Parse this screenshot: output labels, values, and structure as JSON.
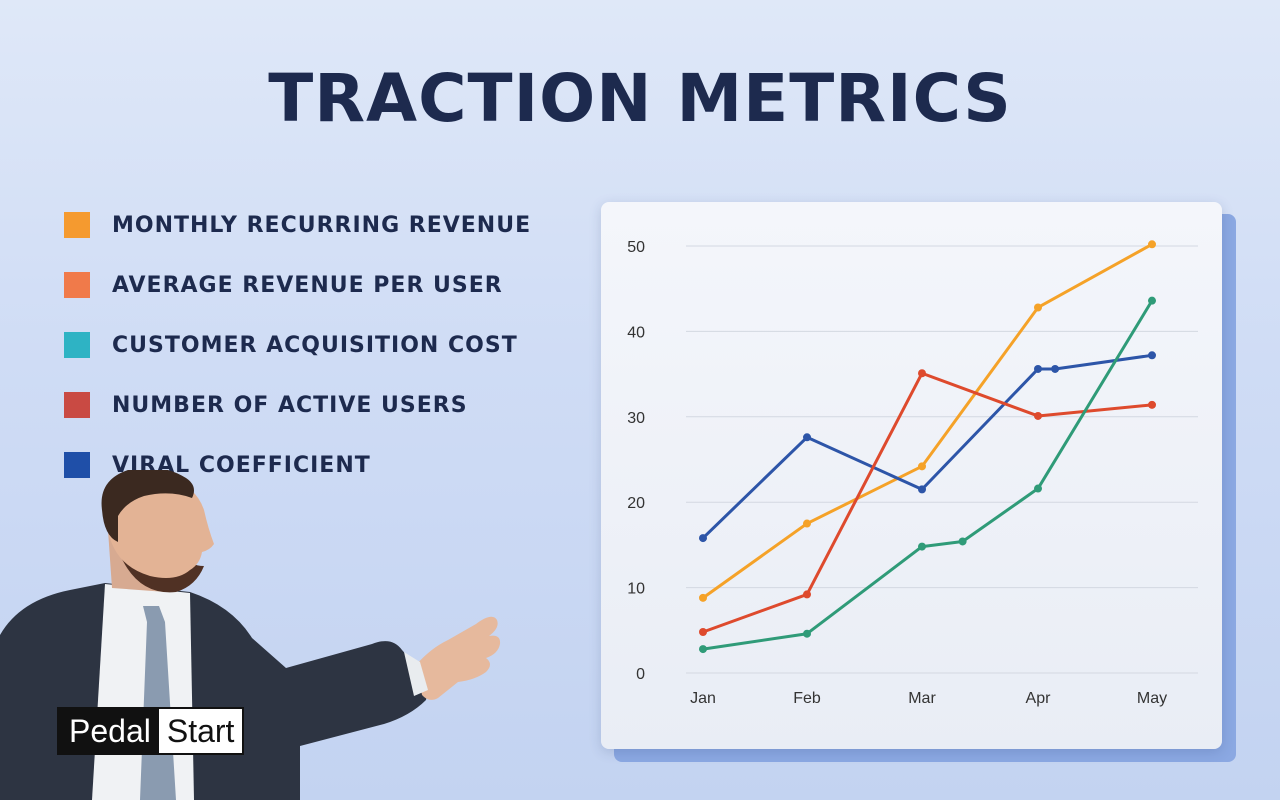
{
  "page": {
    "title": "TRACTION METRICS",
    "brand": {
      "part1": "Pedal",
      "part2": "Start"
    }
  },
  "legend": [
    {
      "label": "MONTHLY RECURRING REVENUE",
      "color": "#f59a2f"
    },
    {
      "label": "AVERAGE REVENUE PER USER",
      "color": "#f07a4a"
    },
    {
      "label": "CUSTOMER ACQUISITION COST",
      "color": "#2eb3c4"
    },
    {
      "label": "NUMBER OF ACTIVE USERS",
      "color": "#c94a43"
    },
    {
      "label": "VIRAL COEFFICIENT",
      "color": "#1f4fa8"
    }
  ],
  "chart_data": {
    "type": "line",
    "categories": [
      "Jan",
      "Feb",
      "Mar",
      "Apr",
      "May"
    ],
    "ylim": [
      0,
      50
    ],
    "yticks": [
      0,
      10,
      20,
      30,
      40,
      50
    ],
    "grid": true,
    "series": [
      {
        "name": "Orange",
        "color": "#f5a228",
        "points": [
          [
            0,
            8.8
          ],
          [
            1,
            17.5
          ],
          [
            2,
            24.2
          ],
          [
            3,
            42.8
          ],
          [
            4,
            50.2
          ]
        ]
      },
      {
        "name": "Blue",
        "color": "#2d55a8",
        "points": [
          [
            0,
            15.8
          ],
          [
            1,
            27.6
          ],
          [
            2,
            21.5
          ],
          [
            3,
            35.6
          ],
          [
            3.15,
            35.6
          ],
          [
            4,
            37.2
          ]
        ]
      },
      {
        "name": "Red",
        "color": "#de4a2d",
        "points": [
          [
            0,
            4.8
          ],
          [
            1,
            9.2
          ],
          [
            2,
            35.1
          ],
          [
            3,
            30.1
          ],
          [
            4,
            31.4
          ]
        ]
      },
      {
        "name": "Green",
        "color": "#2f9b78",
        "points": [
          [
            0,
            2.8
          ],
          [
            1,
            4.6
          ],
          [
            2,
            14.8
          ],
          [
            2.35,
            15.4
          ],
          [
            3,
            21.6
          ],
          [
            4,
            43.6
          ]
        ]
      }
    ]
  }
}
